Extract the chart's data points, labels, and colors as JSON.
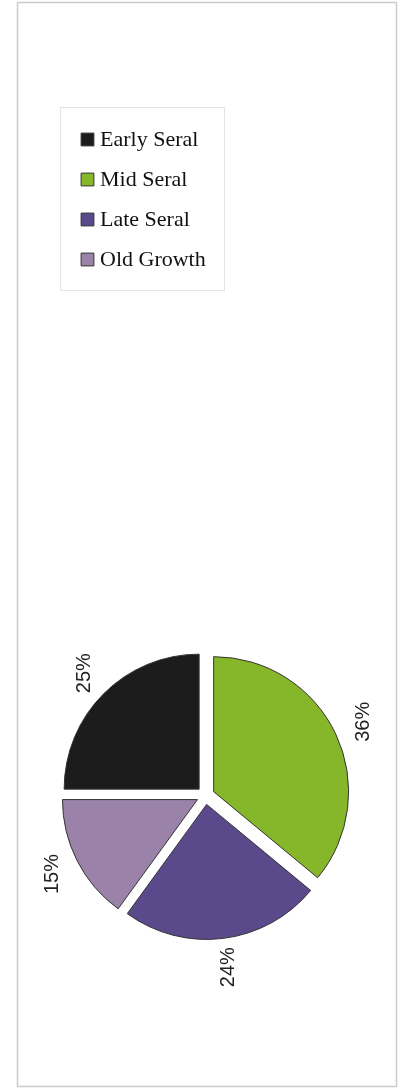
{
  "chart_data": {
    "type": "pie",
    "categories": [
      "Early Seral",
      "Mid Seral",
      "Late Seral",
      "Old Growth"
    ],
    "values": [
      25,
      36,
      24,
      15
    ],
    "colors": [
      "#1c1c1c",
      "#86b72a",
      "#5a4a8c",
      "#9a82a8"
    ],
    "value_labels": [
      "25%",
      "36%",
      "24%",
      "15%"
    ],
    "legend": "top"
  }
}
